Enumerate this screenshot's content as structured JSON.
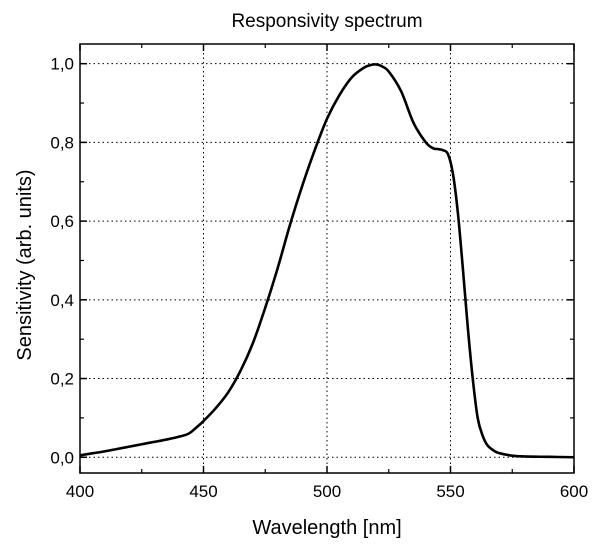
{
  "chart_data": {
    "type": "line",
    "title": "Responsivity spectrum",
    "xlabel": "Wavelength [nm]",
    "ylabel": "Sensitivity (arb. units)",
    "xlim": [
      400,
      600
    ],
    "ylim": [
      -0.04,
      1.05
    ],
    "x_ticks": [
      400,
      450,
      500,
      550,
      600
    ],
    "x_tick_labels": [
      "400",
      "450",
      "500",
      "550",
      "600"
    ],
    "y_ticks": [
      0.0,
      0.2,
      0.4,
      0.6,
      0.8,
      1.0
    ],
    "y_tick_labels": [
      "0,0",
      "0,2",
      "0,4",
      "0,6",
      "0,8",
      "1,0"
    ],
    "grid": true,
    "legend": "none",
    "series": [
      {
        "color": "#000000",
        "x": [
          400,
          405,
          410,
          415,
          420,
          425,
          430,
          435,
          440,
          444,
          447,
          450,
          455,
          460,
          465,
          470,
          475,
          480,
          485,
          490,
          495,
          500,
          505,
          510,
          515,
          518,
          520,
          522,
          525,
          530,
          535,
          540,
          543,
          545,
          547,
          549,
          551,
          553,
          555,
          557,
          559,
          561,
          563,
          565,
          568,
          570,
          575,
          580,
          590,
          600
        ],
        "y": [
          0.005,
          0.01,
          0.015,
          0.021,
          0.027,
          0.033,
          0.039,
          0.045,
          0.052,
          0.06,
          0.075,
          0.092,
          0.125,
          0.165,
          0.22,
          0.29,
          0.38,
          0.48,
          0.59,
          0.69,
          0.78,
          0.86,
          0.92,
          0.965,
          0.99,
          0.997,
          0.998,
          0.994,
          0.98,
          0.93,
          0.85,
          0.8,
          0.785,
          0.783,
          0.78,
          0.77,
          0.72,
          0.62,
          0.48,
          0.33,
          0.2,
          0.1,
          0.055,
          0.03,
          0.015,
          0.01,
          0.004,
          0.002,
          0.001,
          0.0
        ]
      }
    ]
  }
}
